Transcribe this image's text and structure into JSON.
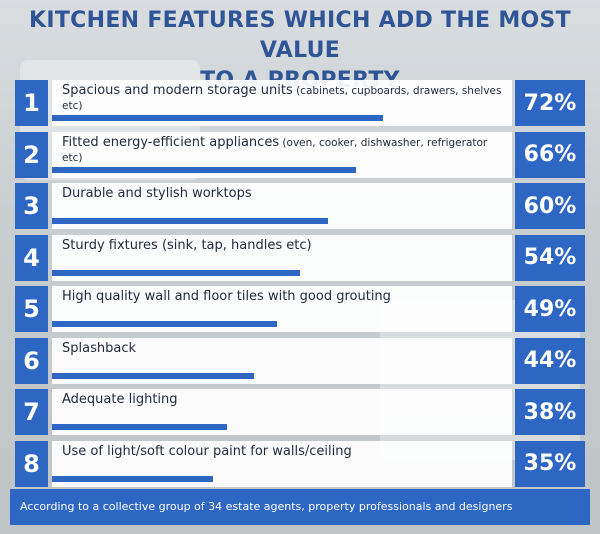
{
  "title": {
    "line1": "KITCHEN FEATURES WHICH ADD THE MOST VALUE",
    "line2": "TO A PROPERTY"
  },
  "colors": {
    "accent": "#2e66c4",
    "title": "#2f5597",
    "card": "#ffffff"
  },
  "chart_data": {
    "type": "bar",
    "orientation": "horizontal",
    "title": "KITCHEN FEATURES WHICH ADD THE MOST VALUE TO A PROPERTY",
    "ranks": [
      "1",
      "2",
      "3",
      "4",
      "5",
      "6",
      "7",
      "8"
    ],
    "categories": [
      "Spacious and modern storage units (cabinets, cupboards, drawers, shelves etc)",
      "Fitted energy-efficient appliances (oven, cooker, dishwasher, refrigerator etc)",
      "Durable and stylish worktops",
      "Sturdy fixtures (sink, tap, handles etc)",
      "High quality wall and floor tiles with good grouting",
      "Splashback",
      "Adequate lighting",
      "Use of light/soft colour paint for walls/ceiling"
    ],
    "labels": [
      {
        "main": "Spacious and modern storage units",
        "note": " (cabinets, cupboards, drawers, shelves etc)"
      },
      {
        "main": "Fitted energy-efficient appliances",
        "note": " (oven, cooker, dishwasher, refrigerator etc)"
      },
      {
        "main": "Durable and stylish worktops",
        "note": ""
      },
      {
        "main": "Sturdy fixtures (sink, tap, handles etc)",
        "note": ""
      },
      {
        "main": "High quality wall and floor tiles with good grouting",
        "note": ""
      },
      {
        "main": "Splashback",
        "note": ""
      },
      {
        "main": "Adequate lighting",
        "note": ""
      },
      {
        "main": "Use of light/soft colour paint for walls/ceiling",
        "note": ""
      }
    ],
    "values": [
      72,
      66,
      60,
      54,
      49,
      44,
      38,
      35
    ],
    "value_labels": [
      "72%",
      "66%",
      "60%",
      "54%",
      "49%",
      "44%",
      "38%",
      "35%"
    ],
    "unit": "%",
    "xlim": [
      0,
      100
    ]
  },
  "footer": {
    "text": "According to a collective group of 34 estate agents, property professionals and designers"
  }
}
